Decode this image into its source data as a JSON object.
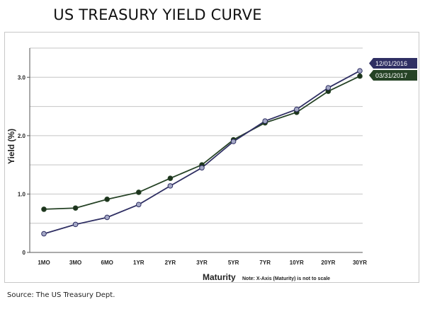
{
  "title": "US TREASURY YIELD CURVE",
  "source": "Source: The US Treasury Dept.",
  "chart_data": {
    "type": "line",
    "title": "US TREASURY YIELD CURVE",
    "xlabel": "Maturity",
    "ylabel": "Yield (%)",
    "note": "Note: X-Axis (Maturity) is not to scale",
    "categories": [
      "1MO",
      "3MO",
      "6MO",
      "1YR",
      "2YR",
      "3YR",
      "5YR",
      "7YR",
      "10YR",
      "20YR",
      "30YR"
    ],
    "ylim": [
      0,
      3.5
    ],
    "yticks": [
      0,
      1.0,
      2.0,
      3.0
    ],
    "ytick_labels": [
      "0",
      "1.0",
      "2.0",
      "3.0"
    ],
    "grid": true,
    "legend_position": "right, at line ends",
    "series": [
      {
        "name": "12/01/2016",
        "color": "#2f2f63",
        "marker_color": "#a4a8c6",
        "values": [
          0.32,
          0.48,
          0.6,
          0.82,
          1.14,
          1.45,
          1.9,
          2.25,
          2.45,
          2.82,
          3.11
        ]
      },
      {
        "name": "03/31/2017",
        "color": "#254225",
        "marker_color": "#1d331d",
        "values": [
          0.74,
          0.76,
          0.91,
          1.03,
          1.27,
          1.5,
          1.93,
          2.22,
          2.4,
          2.76,
          3.02
        ]
      }
    ]
  }
}
